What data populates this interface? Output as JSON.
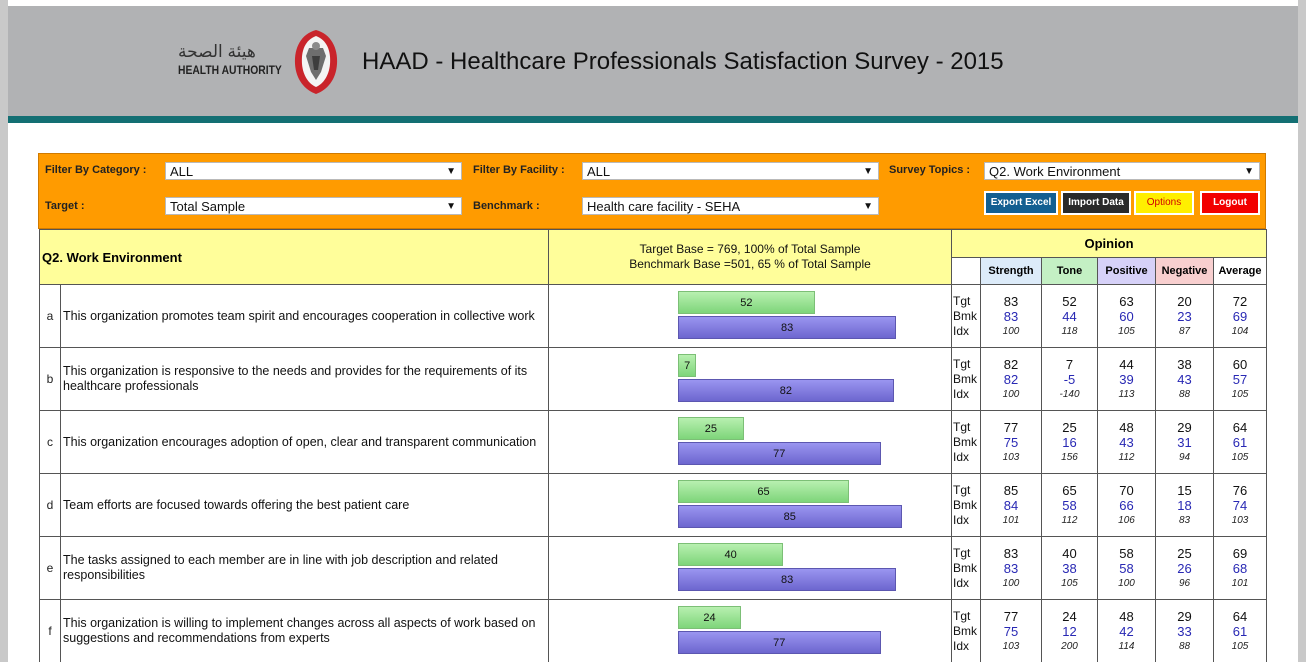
{
  "header": {
    "logo_arabic": "هيئة الصحة",
    "logo_english": "HEALTH AUTHORITY",
    "title": "HAAD - Healthcare Professionals Satisfaction Survey - 2015"
  },
  "filters": {
    "category_label": "Filter By Category :",
    "category_value": "ALL",
    "facility_label": "Filter By Facility :",
    "facility_value": "ALL",
    "topics_label": "Survey Topics :",
    "topics_value": "Q2. Work Environment",
    "target_label": "Target :",
    "target_value": "Total Sample",
    "benchmark_label": "Benchmark :",
    "benchmark_value": "Health care facility - SEHA"
  },
  "buttons": {
    "export": "Export Excel",
    "import": "Import Data",
    "options": "Options",
    "logout": "Logout"
  },
  "colors": {
    "header_bg": "#b1b2b4",
    "stripe": "#136f73",
    "filter_bg": "#ff9b00",
    "target_bar": "#8edc88",
    "benchmark_bar": "#7b75dc"
  },
  "table": {
    "topic": "Q2. Work Environment",
    "target_base": "Target Base = 769, 100% of Total Sample",
    "benchmark_base": "Benchmark Base =501, 65 % of Total Sample",
    "opinion_header": "Opinion",
    "columns": [
      "Strength",
      "Tone",
      "Positive",
      "Negative",
      "Average"
    ],
    "row_labels": [
      "Tgt",
      "Bmk",
      "Idx"
    ],
    "rows": [
      {
        "letter": "a",
        "text": "This organization promotes team spirit and encourages cooperation in collective work",
        "bar_tgt": 52,
        "bar_bmk": 83,
        "tgt": [
          83,
          52,
          63,
          20,
          72
        ],
        "bmk": [
          83,
          44,
          60,
          23,
          69
        ],
        "idx": [
          100,
          118,
          105,
          87,
          104
        ]
      },
      {
        "letter": "b",
        "text": "This organization is responsive to the needs and provides for the requirements of its healthcare professionals",
        "bar_tgt": 7,
        "bar_bmk": 82,
        "tgt": [
          82,
          7,
          44,
          38,
          60
        ],
        "bmk": [
          82,
          -5,
          39,
          43,
          57
        ],
        "idx": [
          100,
          -140,
          113,
          88,
          105
        ]
      },
      {
        "letter": "c",
        "text": "This organization encourages adoption of open, clear and transparent communication",
        "bar_tgt": 25,
        "bar_bmk": 77,
        "tgt": [
          77,
          25,
          48,
          29,
          64
        ],
        "bmk": [
          75,
          16,
          43,
          31,
          61
        ],
        "idx": [
          103,
          156,
          112,
          94,
          105
        ]
      },
      {
        "letter": "d",
        "text": "Team efforts are focused towards offering the best patient care",
        "bar_tgt": 65,
        "bar_bmk": 85,
        "tgt": [
          85,
          65,
          70,
          15,
          76
        ],
        "bmk": [
          84,
          58,
          66,
          18,
          74
        ],
        "idx": [
          101,
          112,
          106,
          83,
          103
        ]
      },
      {
        "letter": "e",
        "text": "The tasks assigned to each member are in line with job description and related responsibilities",
        "bar_tgt": 40,
        "bar_bmk": 83,
        "tgt": [
          83,
          40,
          58,
          25,
          69
        ],
        "bmk": [
          83,
          38,
          58,
          26,
          68
        ],
        "idx": [
          100,
          105,
          100,
          96,
          101
        ]
      },
      {
        "letter": "f",
        "text": "This organization is willing to implement changes across all aspects of work based on suggestions and recommendations from experts",
        "bar_tgt": 24,
        "bar_bmk": 77,
        "tgt": [
          77,
          24,
          48,
          29,
          64
        ],
        "bmk": [
          75,
          12,
          42,
          33,
          61
        ],
        "idx": [
          103,
          200,
          114,
          88,
          105
        ]
      }
    ]
  }
}
